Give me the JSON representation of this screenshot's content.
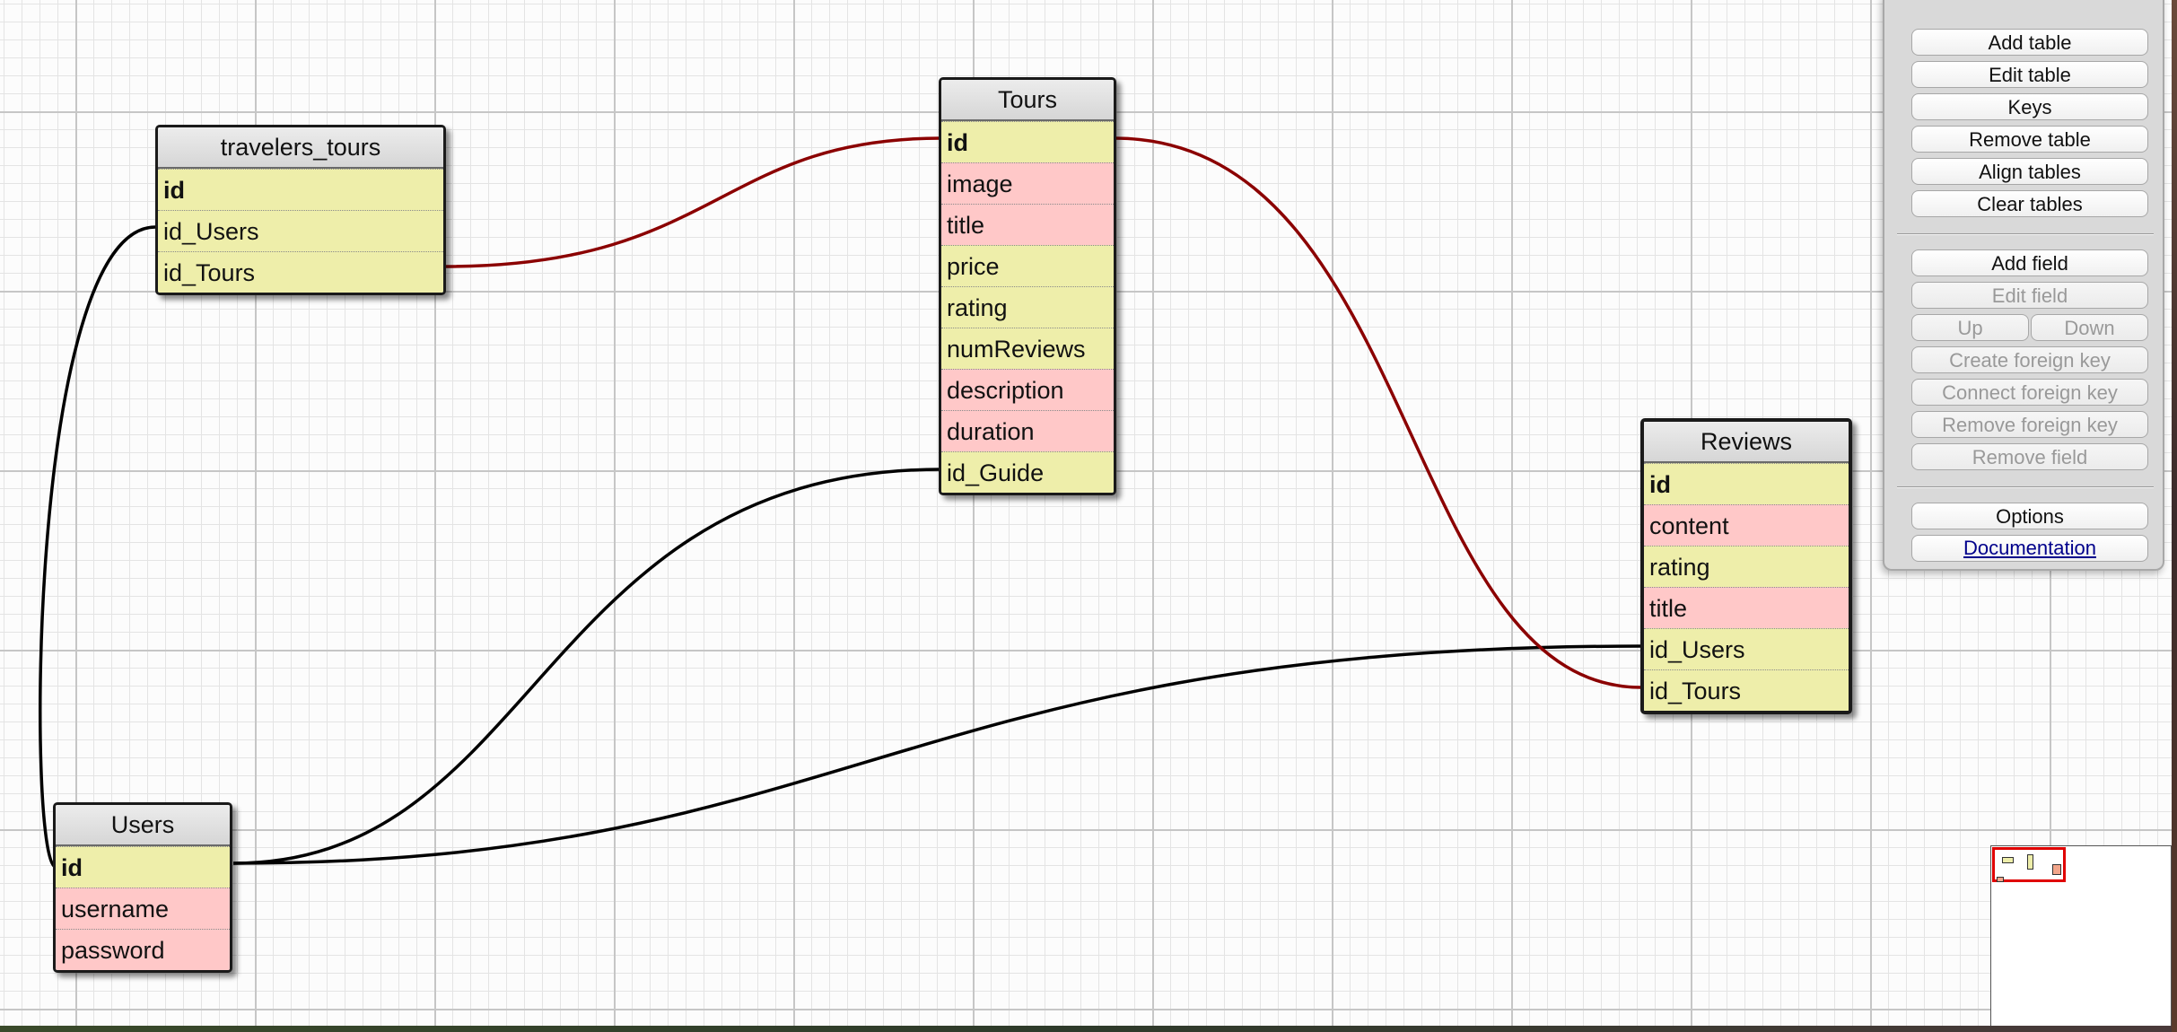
{
  "tables": [
    {
      "id": "travelers_tours",
      "title": "travelers_tours",
      "fields": [
        {
          "name": "id",
          "key": true,
          "color": "yellow"
        },
        {
          "name": "id_Users",
          "key": false,
          "color": "yellow"
        },
        {
          "name": "id_Tours",
          "key": false,
          "color": "yellow"
        }
      ]
    },
    {
      "id": "Tours",
      "title": "Tours",
      "fields": [
        {
          "name": "id",
          "key": true,
          "color": "yellow"
        },
        {
          "name": "image",
          "key": false,
          "color": "pink"
        },
        {
          "name": "title",
          "key": false,
          "color": "pink"
        },
        {
          "name": "price",
          "key": false,
          "color": "yellow"
        },
        {
          "name": "rating",
          "key": false,
          "color": "yellow"
        },
        {
          "name": "numReviews",
          "key": false,
          "color": "yellow"
        },
        {
          "name": "description",
          "key": false,
          "color": "pink"
        },
        {
          "name": "duration",
          "key": false,
          "color": "pink"
        },
        {
          "name": "id_Guide",
          "key": false,
          "color": "yellow"
        }
      ]
    },
    {
      "id": "Reviews",
      "title": "Reviews",
      "fields": [
        {
          "name": "id",
          "key": true,
          "color": "yellow"
        },
        {
          "name": "content",
          "key": false,
          "color": "pink"
        },
        {
          "name": "rating",
          "key": false,
          "color": "yellow"
        },
        {
          "name": "title",
          "key": false,
          "color": "pink"
        },
        {
          "name": "id_Users",
          "key": false,
          "color": "yellow"
        },
        {
          "name": "id_Tours",
          "key": false,
          "color": "yellow"
        }
      ]
    },
    {
      "id": "Users",
      "title": "Users",
      "fields": [
        {
          "name": "id",
          "key": true,
          "color": "yellow"
        },
        {
          "name": "username",
          "key": false,
          "color": "pink"
        },
        {
          "name": "password",
          "key": false,
          "color": "pink"
        }
      ]
    }
  ],
  "relations": [
    {
      "from": "travelers_tours.id_Tours",
      "to": "Tours.id",
      "color": "#8b0000"
    },
    {
      "from": "travelers_tours.id_Users",
      "to": "Users.id",
      "color": "#000000"
    },
    {
      "from": "Tours.id_Guide",
      "to": "Users.id",
      "color": "#000000"
    },
    {
      "from": "Reviews.id_Users",
      "to": "Users.id",
      "color": "#000000"
    },
    {
      "from": "Reviews.id_Tours",
      "to": "Tours.id",
      "color": "#8b0000"
    }
  ],
  "controls": {
    "add_table": "Add table",
    "edit_table": "Edit table",
    "keys": "Keys",
    "remove_table": "Remove table",
    "align_tables": "Align tables",
    "clear_tables": "Clear tables",
    "add_field": "Add field",
    "edit_field": "Edit field",
    "up": "Up",
    "down": "Down",
    "create_foreign_key": "Create foreign key",
    "connect_foreign_key": "Connect foreign key",
    "remove_foreign_key": "Remove foreign key",
    "remove_field": "Remove field",
    "options": "Options",
    "documentation": "Documentation"
  },
  "colors": {
    "field_yellow": "#eeeeaa",
    "field_pink": "#ffc8c8",
    "relation_red": "#8b0000",
    "relation_black": "#000000",
    "minimap_viewport": "#e00000"
  }
}
